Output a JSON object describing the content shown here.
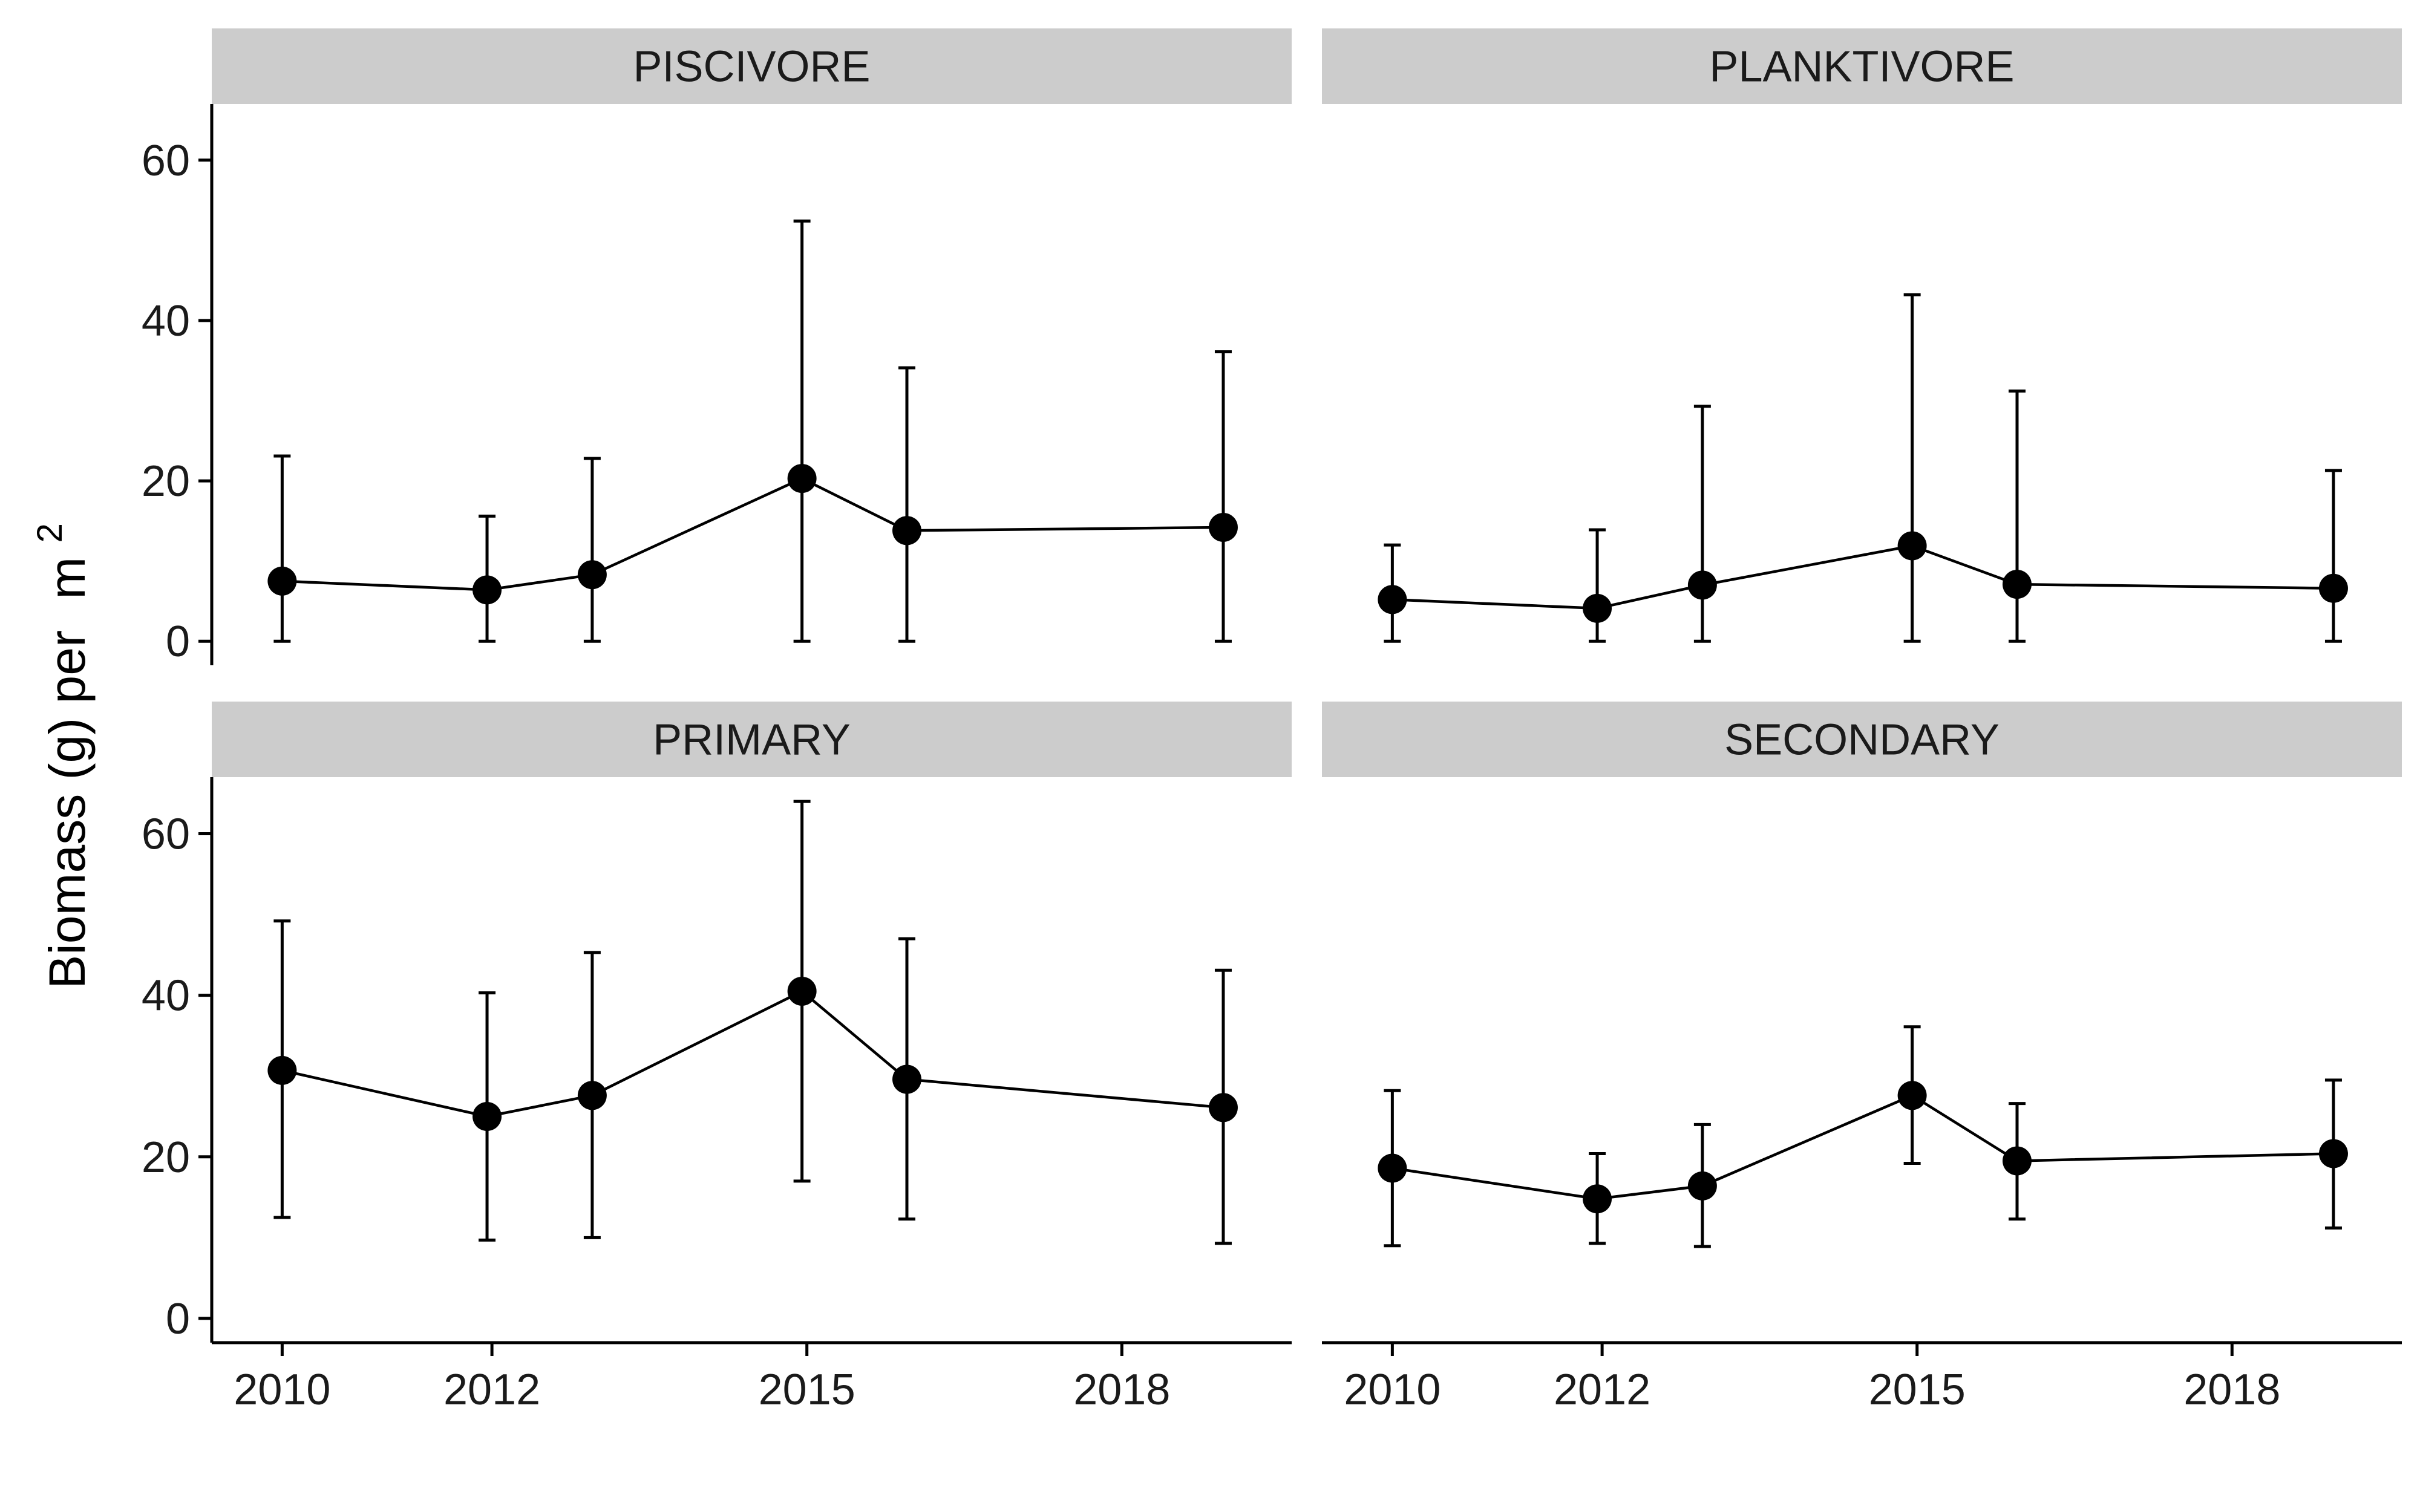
{
  "chart_data": {
    "type": "line",
    "facet_layout": "2x2",
    "ylabel": "Biomass (g) per",
    "ylabel_unit_base": "m",
    "ylabel_unit_exp": "2",
    "xlabel": "",
    "ylim": [
      -3,
      67
    ],
    "xlim": [
      "2009-05-01",
      "2019-08-15"
    ],
    "x_ticks": [
      "2010",
      "2012",
      "2015",
      "2018"
    ],
    "y_ticks": [
      0,
      20,
      40,
      60
    ],
    "grid": false,
    "x": [
      "2010-01-01",
      "2011-12-15",
      "2012-12-15",
      "2014-12-15",
      "2015-12-15",
      "2018-12-20"
    ],
    "panels": [
      {
        "strip": "PISCIVORE",
        "values": [
          7.5,
          6.4,
          8.3,
          20.3,
          13.8,
          14.2
        ],
        "lower": [
          0,
          0,
          0,
          0,
          0,
          0
        ],
        "upper": [
          23.1,
          15.6,
          22.8,
          52.4,
          34.1,
          36.1
        ]
      },
      {
        "strip": "PLANKTIVORE",
        "values": [
          5.2,
          4.1,
          7.0,
          11.9,
          7.1,
          6.6
        ],
        "lower": [
          0,
          0,
          0,
          0,
          0,
          0
        ],
        "upper": [
          12.0,
          13.9,
          29.3,
          43.2,
          31.2,
          21.3
        ]
      },
      {
        "strip": "PRIMARY",
        "values": [
          30.7,
          25.0,
          27.6,
          40.5,
          29.6,
          26.1
        ],
        "lower": [
          12.5,
          9.7,
          10.0,
          17.0,
          12.3,
          9.3
        ],
        "upper": [
          49.2,
          40.3,
          45.3,
          64.0,
          47.0,
          43.1
        ]
      },
      {
        "strip": "SECONDARY",
        "values": [
          18.6,
          14.8,
          16.4,
          27.6,
          19.5,
          20.4
        ],
        "lower": [
          9.0,
          9.3,
          8.9,
          19.2,
          12.3,
          11.2
        ],
        "upper": [
          28.2,
          20.4,
          24.0,
          36.1,
          26.6,
          29.5
        ]
      }
    ]
  }
}
